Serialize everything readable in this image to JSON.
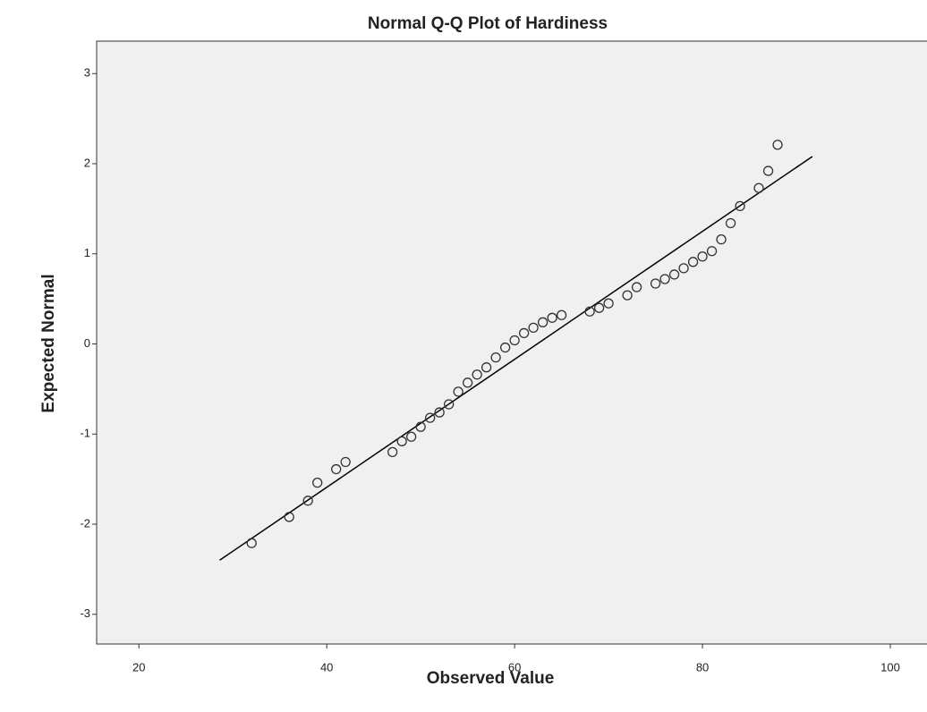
{
  "chart_data": {
    "type": "scatter",
    "title": "Normal Q-Q Plot of Hardiness",
    "x_label": "Observed Value",
    "y_label": "Expected Normal",
    "x": [
      32,
      36,
      38,
      39,
      41,
      42,
      47,
      48,
      49,
      50,
      51,
      52,
      53,
      54,
      55,
      56,
      57,
      58,
      59,
      60,
      61,
      62,
      63,
      64,
      65,
      68,
      69,
      70,
      72,
      73,
      75,
      76,
      77,
      78,
      79,
      80,
      81,
      82,
      83,
      84,
      86,
      87,
      88
    ],
    "y": [
      -2.21,
      -1.92,
      -1.74,
      -1.54,
      -1.39,
      -1.31,
      -1.2,
      -1.08,
      -1.03,
      -0.92,
      -0.82,
      -0.76,
      -0.67,
      -0.53,
      -0.43,
      -0.34,
      -0.26,
      -0.15,
      -0.04,
      0.04,
      0.12,
      0.18,
      0.24,
      0.29,
      0.32,
      0.36,
      0.4,
      0.45,
      0.54,
      0.63,
      0.67,
      0.72,
      0.77,
      0.84,
      0.91,
      0.97,
      1.03,
      1.16,
      1.34,
      1.53,
      1.73,
      1.92,
      2.21
    ],
    "color": "#333333",
    "reference_line": {
      "x": [
        28.6,
        91.7
      ],
      "y": [
        -2.4,
        2.08
      ],
      "color": "#000000"
    },
    "xlim": [
      15.5,
      104
    ],
    "ylim": [
      -3.33,
      3.36
    ],
    "xticks": [
      20,
      40,
      60,
      80,
      100
    ],
    "yticks": [
      -3,
      -2,
      -1,
      0,
      1,
      2,
      3
    ]
  }
}
